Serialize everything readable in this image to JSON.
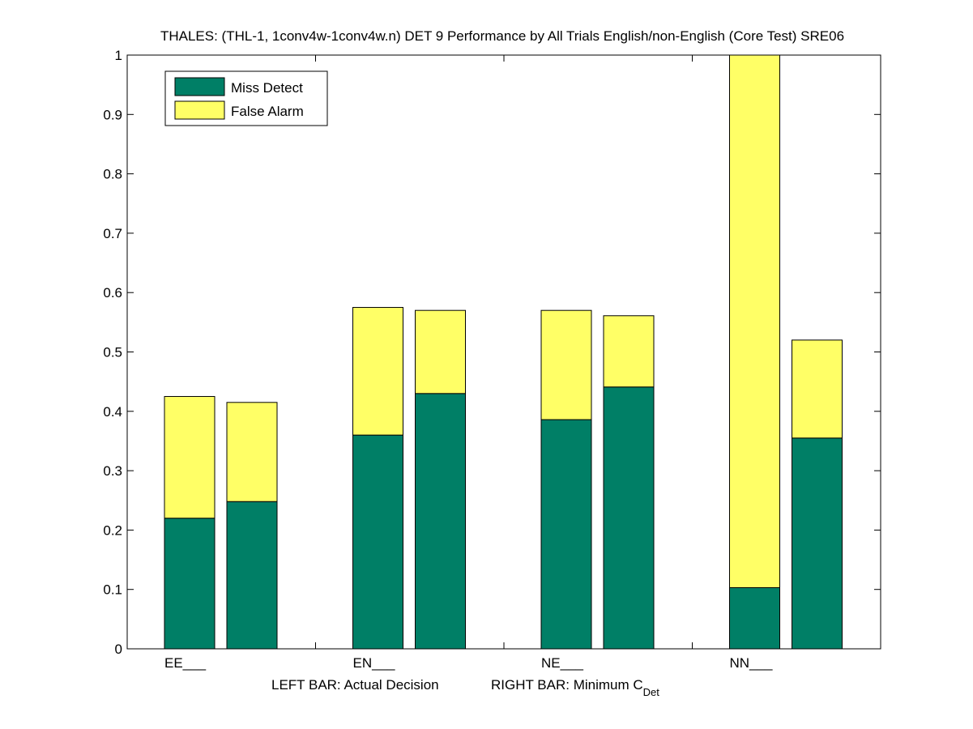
{
  "chart_data": {
    "type": "bar",
    "title": "THALES: (THL-1, 1conv4w-1conv4w.n) DET 9 Performance by All Trials English/non-English (Core Test) SRE06",
    "categories": [
      "EE___",
      "EN___",
      "NE___",
      "NN___"
    ],
    "bar_roles": [
      "Actual Decision",
      "Minimum C_Det"
    ],
    "series": [
      {
        "name": "Miss Detect",
        "color": "#007f66",
        "values": [
          [
            0.22,
            0.248
          ],
          [
            0.36,
            0.43
          ],
          [
            0.386,
            0.441
          ],
          [
            0.103,
            0.355
          ]
        ]
      },
      {
        "name": "False Alarm",
        "color": "#ffff66",
        "values": [
          [
            0.205,
            0.167
          ],
          [
            0.215,
            0.14
          ],
          [
            0.184,
            0.12
          ],
          [
            0.897,
            0.165
          ]
        ]
      }
    ],
    "totals": [
      [
        0.425,
        0.415
      ],
      [
        0.575,
        0.57
      ],
      [
        0.57,
        0.561
      ],
      [
        1.0,
        0.52
      ]
    ],
    "ylim": [
      0,
      1
    ],
    "yticks": [
      "0",
      "0.1",
      "0.2",
      "0.3",
      "0.4",
      "0.5",
      "0.6",
      "0.7",
      "0.8",
      "0.9",
      "1"
    ],
    "xlabel_left": "LEFT BAR: Actual Decision",
    "xlabel_right_main": "RIGHT BAR: Minimum C",
    "xlabel_right_sub": "Det",
    "legend": {
      "position": "top-left",
      "entries": [
        "Miss Detect",
        "False Alarm"
      ]
    }
  }
}
